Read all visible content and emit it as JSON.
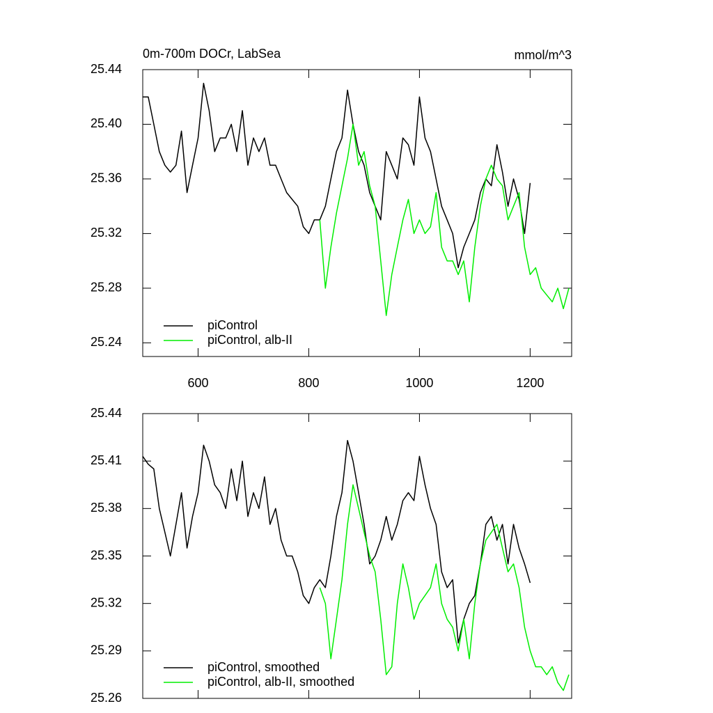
{
  "chart_data": [
    {
      "type": "line",
      "title": "0m-700m DOCr, LabSea",
      "units": "mmol/m^3",
      "x": [
        500,
        510,
        520,
        530,
        540,
        550,
        560,
        570,
        580,
        590,
        600,
        610,
        620,
        630,
        640,
        650,
        660,
        670,
        680,
        690,
        700,
        710,
        720,
        730,
        740,
        750,
        760,
        770,
        780,
        790,
        800,
        810,
        820,
        830,
        840,
        850,
        860,
        870,
        880,
        890,
        900,
        910,
        920,
        930,
        940,
        950,
        960,
        970,
        980,
        990,
        1000,
        1010,
        1020,
        1030,
        1040,
        1050,
        1060,
        1070,
        1080,
        1090,
        1100,
        1110,
        1120,
        1130,
        1140,
        1150,
        1160,
        1170,
        1180,
        1190,
        1200,
        1210,
        1220,
        1230,
        1240,
        1250,
        1260,
        1270
      ],
      "series": [
        {
          "name": "piControl",
          "color": "#000000",
          "values": [
            25.42,
            25.42,
            25.4,
            25.38,
            25.37,
            25.365,
            25.37,
            25.395,
            25.35,
            25.37,
            25.39,
            25.43,
            25.41,
            25.38,
            25.39,
            25.39,
            25.4,
            25.38,
            25.41,
            25.37,
            25.39,
            25.38,
            25.39,
            25.37,
            25.37,
            25.36,
            25.35,
            25.345,
            25.34,
            25.325,
            25.32,
            25.33,
            25.33,
            25.34,
            25.36,
            25.38,
            25.39,
            25.425,
            25.4,
            25.38,
            25.37,
            25.35,
            25.34,
            25.33,
            25.38,
            25.37,
            25.36,
            25.39,
            25.385,
            25.37,
            25.42,
            25.39,
            25.38,
            25.36,
            25.34,
            25.33,
            25.32,
            25.295,
            25.31,
            25.32,
            25.33,
            25.35,
            25.36,
            25.355,
            25.385,
            25.365,
            25.34,
            25.36,
            25.345,
            25.32,
            25.357,
            null,
            null,
            null,
            null,
            null,
            null,
            null
          ]
        },
        {
          "name": "piControl, alb-II",
          "color": "#00ee00",
          "values": [
            null,
            null,
            null,
            null,
            null,
            null,
            null,
            null,
            null,
            null,
            null,
            null,
            null,
            null,
            null,
            null,
            null,
            null,
            null,
            null,
            null,
            null,
            null,
            null,
            null,
            null,
            null,
            null,
            null,
            null,
            null,
            null,
            25.33,
            25.28,
            25.31,
            25.335,
            25.355,
            25.375,
            25.4,
            25.37,
            25.38,
            25.355,
            25.34,
            25.3,
            25.26,
            25.29,
            25.31,
            25.33,
            25.345,
            25.32,
            25.33,
            25.32,
            25.325,
            25.35,
            25.31,
            25.3,
            25.3,
            25.29,
            25.3,
            25.27,
            25.31,
            25.34,
            25.36,
            25.37,
            25.36,
            25.355,
            25.33,
            25.34,
            25.35,
            25.31,
            25.29,
            25.295,
            25.28,
            25.275,
            25.27,
            25.28,
            25.265,
            25.28
          ]
        }
      ],
      "xlim": [
        500,
        1275
      ],
      "xticks": [
        600,
        800,
        1000,
        1200
      ],
      "ylim": [
        25.23,
        25.44
      ],
      "yticks": [
        25.24,
        25.28,
        25.32,
        25.36,
        {
          "value": 25.4,
          "label": "25.40"
        },
        25.44
      ],
      "xticklabels": true,
      "legend": "lower left"
    },
    {
      "type": "line",
      "x": [
        500,
        510,
        520,
        530,
        540,
        550,
        560,
        570,
        580,
        590,
        600,
        610,
        620,
        630,
        640,
        650,
        660,
        670,
        680,
        690,
        700,
        710,
        720,
        730,
        740,
        750,
        760,
        770,
        780,
        790,
        800,
        810,
        820,
        830,
        840,
        850,
        860,
        870,
        880,
        890,
        900,
        910,
        920,
        930,
        940,
        950,
        960,
        970,
        980,
        990,
        1000,
        1010,
        1020,
        1030,
        1040,
        1050,
        1060,
        1070,
        1080,
        1090,
        1100,
        1110,
        1120,
        1130,
        1140,
        1150,
        1160,
        1170,
        1180,
        1190,
        1200,
        1210,
        1220,
        1230,
        1240,
        1250,
        1260,
        1270
      ],
      "series": [
        {
          "name": "piControl, smoothed",
          "color": "#000000",
          "values": [
            25.413,
            25.408,
            25.405,
            25.38,
            25.365,
            25.35,
            25.37,
            25.39,
            25.355,
            25.375,
            25.39,
            25.42,
            25.41,
            25.395,
            25.39,
            25.38,
            25.405,
            25.385,
            25.41,
            25.375,
            25.39,
            25.38,
            25.4,
            25.37,
            25.38,
            25.36,
            25.35,
            25.35,
            25.34,
            25.325,
            25.32,
            25.33,
            25.335,
            25.33,
            25.35,
            25.375,
            25.39,
            25.423,
            25.41,
            25.39,
            25.37,
            25.345,
            25.35,
            25.36,
            25.375,
            25.36,
            25.37,
            25.385,
            25.39,
            25.385,
            25.413,
            25.395,
            25.38,
            25.37,
            25.34,
            25.33,
            25.335,
            25.295,
            25.31,
            25.32,
            25.325,
            25.345,
            25.37,
            25.375,
            25.36,
            25.37,
            25.345,
            25.37,
            25.355,
            25.345,
            25.333,
            null,
            null,
            null,
            null,
            null,
            null,
            null
          ]
        },
        {
          "name": "piControl, alb-II, smoothed",
          "color": "#00ee00",
          "values": [
            null,
            null,
            null,
            null,
            null,
            null,
            null,
            null,
            null,
            null,
            null,
            null,
            null,
            null,
            null,
            null,
            null,
            null,
            null,
            null,
            null,
            null,
            null,
            null,
            null,
            null,
            null,
            null,
            null,
            null,
            null,
            null,
            25.33,
            25.32,
            25.285,
            25.31,
            25.335,
            25.37,
            25.395,
            25.38,
            25.365,
            25.35,
            25.34,
            25.31,
            25.275,
            25.28,
            25.32,
            25.345,
            25.33,
            25.31,
            25.32,
            25.325,
            25.33,
            25.345,
            25.32,
            25.31,
            25.305,
            25.29,
            25.31,
            25.285,
            25.32,
            25.345,
            25.36,
            25.365,
            25.37,
            25.355,
            25.34,
            25.345,
            25.33,
            25.305,
            25.29,
            25.28,
            25.28,
            25.275,
            25.28,
            25.27,
            25.265,
            25.275
          ]
        }
      ],
      "xlim": [
        500,
        1275
      ],
      "xticks": [
        600,
        800,
        1000,
        1200
      ],
      "ylim": [
        25.26,
        25.44
      ],
      "yticks": [
        25.26,
        25.29,
        25.32,
        25.35,
        25.38,
        25.41,
        25.44
      ],
      "xticklabels": false,
      "legend": "lower left"
    }
  ]
}
